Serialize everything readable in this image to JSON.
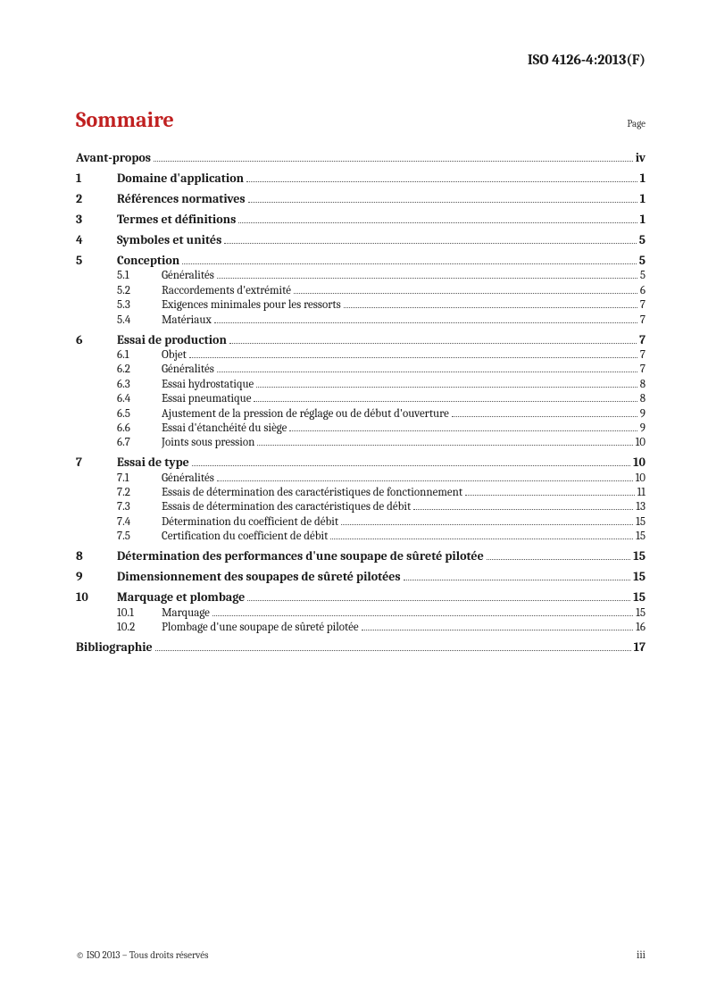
{
  "docId": "ISO 4126-4:2013(F)",
  "heading": "Sommaire",
  "pageLabel": "Page",
  "footer": {
    "copyright": "© ISO 2013 – Tous droits réservés",
    "pageNum": "iii"
  },
  "toc": [
    {
      "num": "",
      "title": "Avant-propos",
      "page": "iv",
      "bold": true,
      "children": []
    },
    {
      "num": "1",
      "title": "Domaine d'application",
      "page": "1",
      "bold": true,
      "children": []
    },
    {
      "num": "2",
      "title": "Références normatives",
      "page": "1",
      "bold": true,
      "children": []
    },
    {
      "num": "3",
      "title": "Termes et définitions",
      "page": "1",
      "bold": true,
      "children": []
    },
    {
      "num": "4",
      "title": "Symboles et unités",
      "page": "5",
      "bold": true,
      "children": []
    },
    {
      "num": "5",
      "title": "Conception",
      "page": "5",
      "bold": true,
      "children": [
        {
          "num": "5.1",
          "title": "Généralités",
          "page": "5"
        },
        {
          "num": "5.2",
          "title": "Raccordements d'extrémité",
          "page": "6"
        },
        {
          "num": "5.3",
          "title": "Exigences minimales pour les ressorts",
          "page": "7"
        },
        {
          "num": "5.4",
          "title": "Matériaux",
          "page": "7"
        }
      ]
    },
    {
      "num": "6",
      "title": "Essai de production",
      "page": "7",
      "bold": true,
      "children": [
        {
          "num": "6.1",
          "title": "Objet",
          "page": "7"
        },
        {
          "num": "6.2",
          "title": "Généralités",
          "page": "7"
        },
        {
          "num": "6.3",
          "title": "Essai hydrostatique",
          "page": "8"
        },
        {
          "num": "6.4",
          "title": "Essai pneumatique",
          "page": "8"
        },
        {
          "num": "6.5",
          "title": "Ajustement de la pression de réglage ou de début d'ouverture",
          "page": "9"
        },
        {
          "num": "6.6",
          "title": "Essai d'étanchéité du siège",
          "page": "9"
        },
        {
          "num": "6.7",
          "title": "Joints sous pression",
          "page": "10"
        }
      ]
    },
    {
      "num": "7",
      "title": "Essai de type",
      "page": "10",
      "bold": true,
      "children": [
        {
          "num": "7.1",
          "title": "Généralités",
          "page": "10"
        },
        {
          "num": "7.2",
          "title": "Essais de détermination des caractéristiques de fonctionnement",
          "page": "11"
        },
        {
          "num": "7.3",
          "title": "Essais de détermination des caractéristiques de débit",
          "page": "13"
        },
        {
          "num": "7.4",
          "title": "Détermination du coefficient de débit",
          "page": "15"
        },
        {
          "num": "7.5",
          "title": "Certification du coefficient de débit",
          "page": "15"
        }
      ]
    },
    {
      "num": "8",
      "title": "Détermination des performances d'une soupape de sûreté pilotée",
      "page": "15",
      "bold": true,
      "children": []
    },
    {
      "num": "9",
      "title": "Dimensionnement des soupapes de sûreté pilotées",
      "page": "15",
      "bold": true,
      "children": []
    },
    {
      "num": "10",
      "title": "Marquage et plombage",
      "page": "15",
      "bold": true,
      "children": [
        {
          "num": "10.1",
          "title": "Marquage",
          "page": "15"
        },
        {
          "num": "10.2",
          "title": "Plombage d'une soupape de sûreté pilotée",
          "page": "16"
        }
      ]
    },
    {
      "num": "",
      "title": "Bibliographie",
      "page": "17",
      "bold": true,
      "children": []
    }
  ]
}
